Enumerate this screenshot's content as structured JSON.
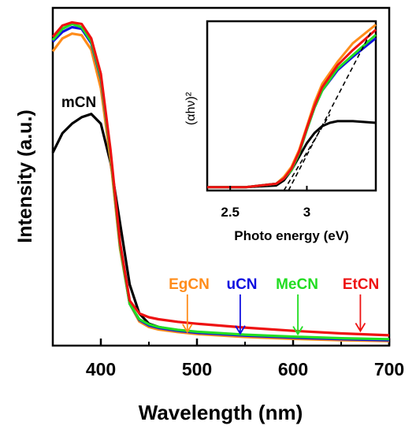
{
  "chart_data": [
    {
      "type": "line",
      "xlabel": "Wavelength (nm)",
      "ylabel": "Intensity (a.u.)",
      "xlim": [
        350,
        700
      ],
      "ylim": [
        0,
        1.05
      ],
      "xticks": [
        "400",
        "500",
        "600",
        "700"
      ],
      "yticks": [],
      "legend": "inline labels with arrows",
      "series": [
        {
          "name": "mCN",
          "color": "#000000",
          "x": [
            350,
            360,
            370,
            380,
            390,
            400,
            410,
            420,
            430,
            440,
            450,
            460,
            480,
            500,
            550,
            600,
            650,
            700
          ],
          "y": [
            0.6,
            0.66,
            0.69,
            0.71,
            0.72,
            0.69,
            0.57,
            0.38,
            0.19,
            0.1,
            0.068,
            0.058,
            0.047,
            0.041,
            0.032,
            0.026,
            0.022,
            0.018
          ]
        },
        {
          "name": "EgCN",
          "color": "#FF8C1A",
          "x": [
            350,
            360,
            370,
            380,
            390,
            400,
            410,
            420,
            430,
            440,
            450,
            460,
            480,
            500,
            550,
            600,
            650,
            700
          ],
          "y": [
            0.915,
            0.955,
            0.97,
            0.965,
            0.92,
            0.8,
            0.58,
            0.3,
            0.13,
            0.075,
            0.058,
            0.05,
            0.042,
            0.036,
            0.027,
            0.021,
            0.017,
            0.014
          ]
        },
        {
          "name": "uCN",
          "color": "#1010E0",
          "x": [
            350,
            360,
            370,
            380,
            390,
            400,
            410,
            420,
            430,
            440,
            450,
            460,
            480,
            500,
            550,
            600,
            650,
            700
          ],
          "y": [
            0.945,
            0.975,
            0.99,
            0.985,
            0.94,
            0.83,
            0.6,
            0.31,
            0.13,
            0.08,
            0.063,
            0.055,
            0.046,
            0.04,
            0.031,
            0.025,
            0.02,
            0.017
          ]
        },
        {
          "name": "MeCN",
          "color": "#22DD22",
          "x": [
            350,
            360,
            370,
            380,
            390,
            400,
            410,
            420,
            430,
            440,
            450,
            460,
            480,
            500,
            550,
            600,
            650,
            700
          ],
          "y": [
            0.95,
            0.985,
            1.0,
            0.99,
            0.945,
            0.835,
            0.6,
            0.31,
            0.13,
            0.082,
            0.066,
            0.058,
            0.049,
            0.043,
            0.034,
            0.028,
            0.023,
            0.02
          ]
        },
        {
          "name": "EtCN",
          "color": "#EE1111",
          "x": [
            350,
            360,
            370,
            380,
            390,
            400,
            410,
            420,
            430,
            440,
            450,
            460,
            480,
            500,
            550,
            600,
            650,
            700
          ],
          "y": [
            0.96,
            0.995,
            1.005,
            1.0,
            0.955,
            0.845,
            0.61,
            0.32,
            0.14,
            0.1,
            0.088,
            0.082,
            0.074,
            0.068,
            0.056,
            0.046,
            0.038,
            0.032
          ]
        }
      ],
      "annotations": [
        {
          "text": "mCN",
          "color": "#000000"
        },
        {
          "text": "EgCN",
          "color": "#FF8C1A",
          "arrow_x": 490,
          "arrow_y": 0.035
        },
        {
          "text": "uCN",
          "color": "#1010E0",
          "arrow_x": 545,
          "arrow_y": 0.03
        },
        {
          "text": "MeCN",
          "color": "#22DD22",
          "arrow_x": 605,
          "arrow_y": 0.028
        },
        {
          "text": "EtCN",
          "color": "#EE1111",
          "arrow_x": 670,
          "arrow_y": 0.038
        }
      ]
    },
    {
      "type": "line",
      "xlabel": "Photo energy (eV)",
      "ylabel": "(αhν)²",
      "xlim": [
        2.35,
        3.45
      ],
      "ylim": [
        0,
        1.0
      ],
      "xticks": [
        "2.5",
        "3"
      ],
      "tick_values": [
        2.5,
        3.0
      ],
      "series": [
        {
          "name": "mCN",
          "color": "#000000",
          "x": [
            2.35,
            2.6,
            2.8,
            2.85,
            2.9,
            2.95,
            3.0,
            3.05,
            3.1,
            3.15,
            3.2,
            3.3,
            3.45
          ],
          "y": [
            0.02,
            0.02,
            0.03,
            0.06,
            0.12,
            0.2,
            0.28,
            0.34,
            0.38,
            0.4,
            0.41,
            0.41,
            0.4
          ]
        },
        {
          "name": "EgCN",
          "color": "#FF8C1A",
          "x": [
            2.35,
            2.6,
            2.8,
            2.85,
            2.9,
            2.95,
            3.0,
            3.05,
            3.1,
            3.2,
            3.3,
            3.45
          ],
          "y": [
            0.02,
            0.02,
            0.04,
            0.08,
            0.14,
            0.24,
            0.38,
            0.52,
            0.63,
            0.76,
            0.87,
            0.98
          ]
        },
        {
          "name": "uCN",
          "color": "#1010E0",
          "x": [
            2.35,
            2.6,
            2.8,
            2.85,
            2.9,
            2.95,
            3.0,
            3.05,
            3.1,
            3.2,
            3.3,
            3.45
          ],
          "y": [
            0.02,
            0.02,
            0.04,
            0.07,
            0.12,
            0.22,
            0.36,
            0.49,
            0.59,
            0.71,
            0.79,
            0.9
          ]
        },
        {
          "name": "MeCN",
          "color": "#22DD22",
          "x": [
            2.35,
            2.6,
            2.8,
            2.85,
            2.9,
            2.95,
            3.0,
            3.05,
            3.1,
            3.2,
            3.3,
            3.45
          ],
          "y": [
            0.02,
            0.02,
            0.04,
            0.07,
            0.12,
            0.22,
            0.36,
            0.49,
            0.59,
            0.72,
            0.8,
            0.92
          ]
        },
        {
          "name": "EtCN",
          "color": "#EE1111",
          "x": [
            2.35,
            2.6,
            2.8,
            2.85,
            2.9,
            2.95,
            3.0,
            3.05,
            3.1,
            3.2,
            3.3,
            3.45
          ],
          "y": [
            0.02,
            0.02,
            0.04,
            0.07,
            0.13,
            0.23,
            0.37,
            0.5,
            0.61,
            0.74,
            0.83,
            0.95
          ]
        }
      ],
      "tangent_lines": [
        {
          "x": [
            2.88,
            3.42
          ],
          "y": [
            0.0,
            0.94
          ]
        },
        {
          "x": [
            2.85,
            3.15
          ],
          "y": [
            0.0,
            0.45
          ]
        }
      ]
    }
  ]
}
